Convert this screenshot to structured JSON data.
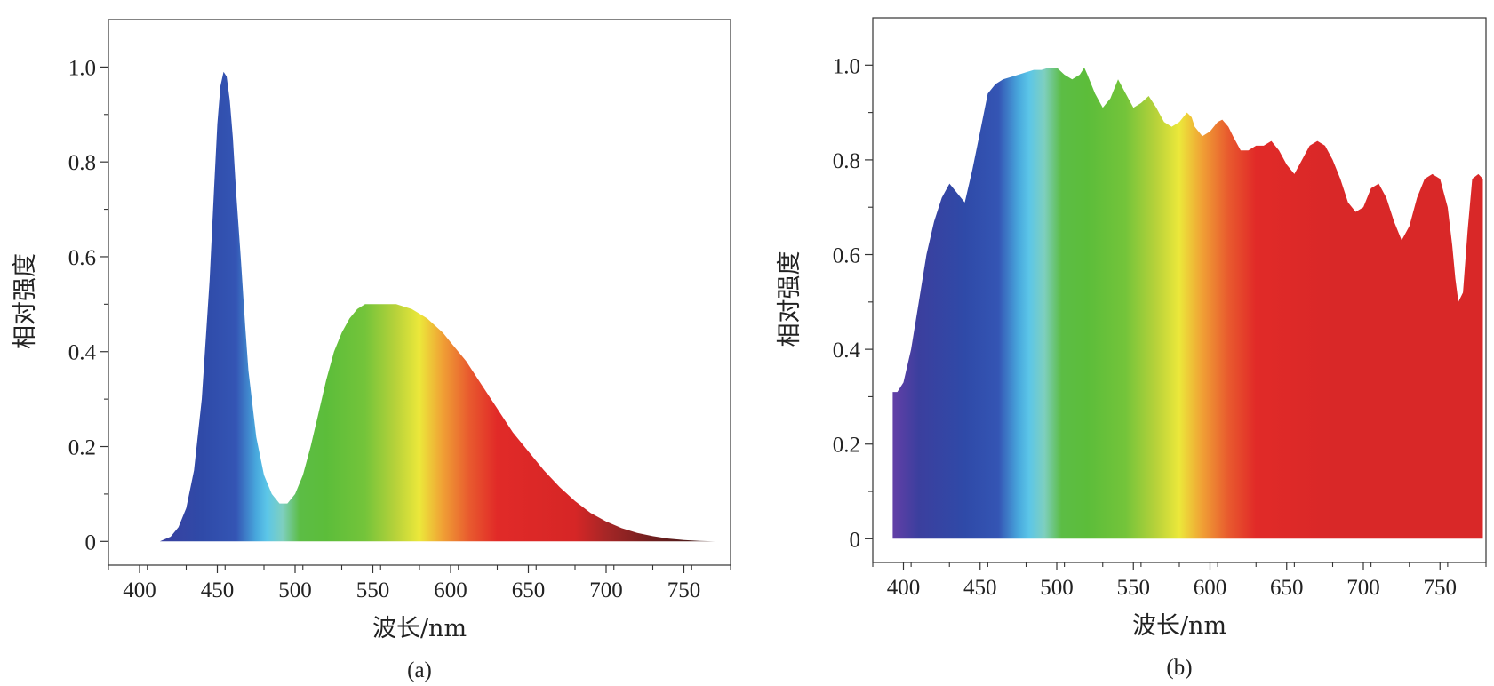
{
  "chart_data": [
    {
      "type": "area",
      "panel_label": "(a)",
      "xlabel": "波长/nm",
      "ylabel": "相对强度",
      "xlim": [
        380,
        780
      ],
      "ylim": [
        -0.05,
        1.1
      ],
      "xticks": [
        400,
        450,
        500,
        550,
        600,
        650,
        700,
        750
      ],
      "yticks": [
        0,
        0.2,
        0.4,
        0.6,
        0.8,
        1.0
      ],
      "ytick_labels": [
        "0",
        "0.2",
        "0.4",
        "0.6",
        "0.8",
        "1.0"
      ],
      "minor_x_step": 25,
      "minor_y_step": 0.1,
      "grid": false,
      "fill": "spectral gradient",
      "series": [
        {
          "x": [
            413,
            420,
            425,
            430,
            435,
            440,
            445,
            448,
            450,
            452,
            454,
            456,
            458,
            460,
            462,
            465,
            468,
            470,
            475,
            480,
            485,
            490,
            495,
            500,
            505,
            510,
            515,
            520,
            525,
            530,
            535,
            540,
            545,
            550,
            555,
            560,
            565,
            570,
            575,
            580,
            585,
            590,
            595,
            600,
            610,
            620,
            630,
            640,
            650,
            660,
            670,
            680,
            690,
            700,
            710,
            720,
            730,
            740,
            750,
            760,
            770
          ],
          "values": [
            0.0,
            0.01,
            0.03,
            0.07,
            0.15,
            0.3,
            0.55,
            0.75,
            0.88,
            0.96,
            0.99,
            0.98,
            0.93,
            0.85,
            0.74,
            0.6,
            0.45,
            0.36,
            0.22,
            0.14,
            0.1,
            0.08,
            0.08,
            0.1,
            0.14,
            0.2,
            0.27,
            0.34,
            0.4,
            0.44,
            0.47,
            0.49,
            0.5,
            0.5,
            0.5,
            0.5,
            0.5,
            0.495,
            0.49,
            0.48,
            0.47,
            0.455,
            0.44,
            0.42,
            0.38,
            0.33,
            0.28,
            0.23,
            0.19,
            0.15,
            0.115,
            0.085,
            0.06,
            0.042,
            0.028,
            0.018,
            0.011,
            0.006,
            0.003,
            0.001,
            0.0
          ]
        }
      ]
    },
    {
      "type": "area",
      "panel_label": "(b)",
      "xlabel": "波长/nm",
      "ylabel": "相对强度",
      "xlim": [
        380,
        780
      ],
      "ylim": [
        -0.05,
        1.1
      ],
      "xticks": [
        400,
        450,
        500,
        550,
        600,
        650,
        700,
        750
      ],
      "yticks": [
        0,
        0.2,
        0.4,
        0.6,
        0.8,
        1.0
      ],
      "ytick_labels": [
        "0",
        "0.2",
        "0.4",
        "0.6",
        "0.8",
        "1.0"
      ],
      "minor_x_step": 25,
      "minor_y_step": 0.1,
      "grid": false,
      "fill": "spectral gradient",
      "series": [
        {
          "x": [
            393,
            396,
            400,
            405,
            410,
            415,
            420,
            425,
            430,
            435,
            440,
            445,
            450,
            455,
            460,
            465,
            470,
            475,
            480,
            485,
            490,
            495,
            500,
            505,
            510,
            515,
            518,
            520,
            525,
            530,
            535,
            540,
            545,
            550,
            555,
            560,
            565,
            570,
            575,
            580,
            585,
            588,
            590,
            595,
            600,
            605,
            608,
            612,
            615,
            620,
            625,
            630,
            635,
            640,
            645,
            650,
            655,
            660,
            665,
            670,
            675,
            680,
            685,
            690,
            695,
            700,
            705,
            710,
            715,
            720,
            725,
            730,
            735,
            740,
            745,
            750,
            755,
            758,
            760,
            762,
            765,
            768,
            771,
            775,
            778
          ],
          "values": [
            0.31,
            0.31,
            0.33,
            0.4,
            0.5,
            0.6,
            0.67,
            0.72,
            0.75,
            0.73,
            0.71,
            0.78,
            0.86,
            0.94,
            0.96,
            0.97,
            0.975,
            0.98,
            0.985,
            0.99,
            0.99,
            0.995,
            0.995,
            0.98,
            0.97,
            0.98,
            0.995,
            0.98,
            0.94,
            0.91,
            0.93,
            0.97,
            0.94,
            0.91,
            0.92,
            0.935,
            0.91,
            0.88,
            0.87,
            0.88,
            0.9,
            0.89,
            0.87,
            0.85,
            0.86,
            0.88,
            0.885,
            0.87,
            0.85,
            0.82,
            0.82,
            0.83,
            0.83,
            0.84,
            0.82,
            0.79,
            0.77,
            0.8,
            0.83,
            0.84,
            0.83,
            0.8,
            0.76,
            0.71,
            0.69,
            0.7,
            0.74,
            0.75,
            0.72,
            0.67,
            0.63,
            0.66,
            0.72,
            0.76,
            0.77,
            0.76,
            0.7,
            0.62,
            0.55,
            0.5,
            0.52,
            0.65,
            0.76,
            0.77,
            0.76
          ]
        }
      ]
    }
  ]
}
